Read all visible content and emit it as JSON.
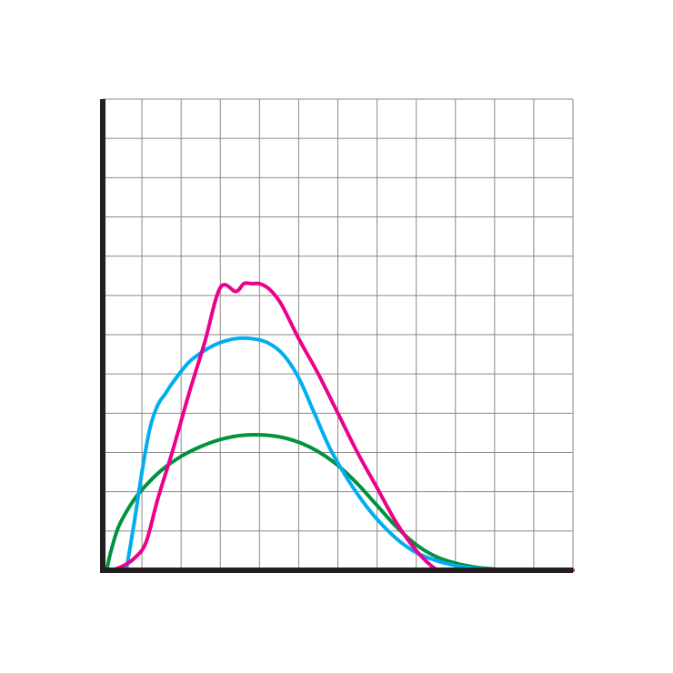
{
  "chart_data": {
    "type": "line",
    "title": "",
    "xlabel": "",
    "ylabel": "",
    "xlim": [
      0,
      12
    ],
    "ylim": [
      0,
      12
    ],
    "grid": true,
    "legend": "none",
    "axis_color": "#231f20",
    "grid_color": "#8a8a8a",
    "series": [
      {
        "color": "#ec008c",
        "x": [
          0,
          0.2,
          0.5,
          0.8,
          1.1,
          1.4,
          1.8,
          2.2,
          2.6,
          3.0,
          3.4,
          3.6,
          3.8,
          4.0,
          4.2,
          4.4,
          4.6,
          5.0,
          5.5,
          6.0,
          6.5,
          7.0,
          7.5,
          8.0,
          8.4,
          8.6,
          8.8,
          9.0,
          10.0,
          11.0,
          12.0
        ],
        "y": [
          0,
          0.0,
          0.1,
          0.3,
          0.7,
          1.8,
          3.1,
          4.5,
          5.8,
          7.2,
          7.1,
          7.3,
          7.3,
          7.3,
          7.2,
          7.0,
          6.7,
          5.9,
          5.0,
          4.0,
          3.0,
          2.1,
          1.2,
          0.5,
          0.1,
          0.0,
          0.0,
          0.0,
          0.0,
          0.0,
          0.0
        ]
      },
      {
        "color": "#00aeef",
        "x": [
          0.6,
          0.8,
          1.0,
          1.2,
          1.4,
          1.6,
          1.8,
          2.2,
          2.6,
          3.0,
          3.4,
          3.8,
          4.2,
          4.6,
          5.0,
          5.4,
          5.8,
          6.2,
          6.6,
          7.0,
          7.5,
          8.0,
          8.5,
          9.0,
          9.5,
          10.0,
          10.5,
          11.0,
          11.5,
          12.0
        ],
        "y": [
          0.0,
          1.2,
          2.5,
          3.6,
          4.2,
          4.5,
          4.8,
          5.3,
          5.6,
          5.8,
          5.9,
          5.9,
          5.8,
          5.5,
          4.9,
          4.0,
          3.1,
          2.4,
          1.8,
          1.3,
          0.8,
          0.45,
          0.25,
          0.12,
          0.05,
          0.02,
          0.0,
          0.0,
          0.0,
          0.0
        ]
      },
      {
        "color": "#00923f",
        "x": [
          0.1,
          0.2,
          0.4,
          0.7,
          1.0,
          1.5,
          2.0,
          2.5,
          3.0,
          3.5,
          4.0,
          4.5,
          5.0,
          5.5,
          6.0,
          6.5,
          7.0,
          7.5,
          8.0,
          8.5,
          9.0,
          9.5,
          10.0,
          10.5,
          11.0,
          11.5,
          12.0
        ],
        "y": [
          0.0,
          0.45,
          1.1,
          1.65,
          2.05,
          2.55,
          2.9,
          3.15,
          3.33,
          3.43,
          3.45,
          3.4,
          3.26,
          3.02,
          2.67,
          2.2,
          1.65,
          1.1,
          0.65,
          0.35,
          0.18,
          0.08,
          0.03,
          0.01,
          0.0,
          0.0,
          0.0
        ]
      }
    ]
  }
}
